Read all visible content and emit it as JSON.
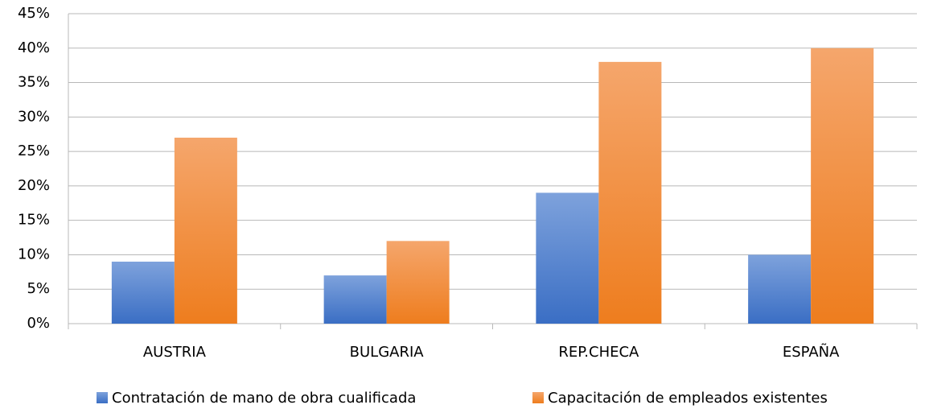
{
  "chart_data": {
    "type": "bar",
    "categories": [
      "AUSTRIA",
      "BULGARIA",
      "REP.CHECA",
      "ESPAÑA"
    ],
    "series": [
      {
        "name": "Contratación de mano de obra cualificada",
        "color": "#4a7fd0",
        "values": [
          9,
          7,
          19,
          10
        ]
      },
      {
        "name": "Capacitación de empleados existentes",
        "color": "#f28a30",
        "values": [
          27,
          12,
          38,
          40
        ]
      }
    ],
    "ylim": [
      0,
      45
    ],
    "yticks": [
      {
        "value": 0,
        "label": "0%"
      },
      {
        "value": 5,
        "label": "5%"
      },
      {
        "value": 10,
        "label": "10%"
      },
      {
        "value": 15,
        "label": "15%"
      },
      {
        "value": 20,
        "label": "20%"
      },
      {
        "value": 25,
        "label": "25%"
      },
      {
        "value": 30,
        "label": "30%"
      },
      {
        "value": 35,
        "label": "35%"
      },
      {
        "value": 40,
        "label": "40%"
      },
      {
        "value": 45,
        "label": "45%"
      }
    ],
    "grid": true,
    "legend": "bottom"
  }
}
